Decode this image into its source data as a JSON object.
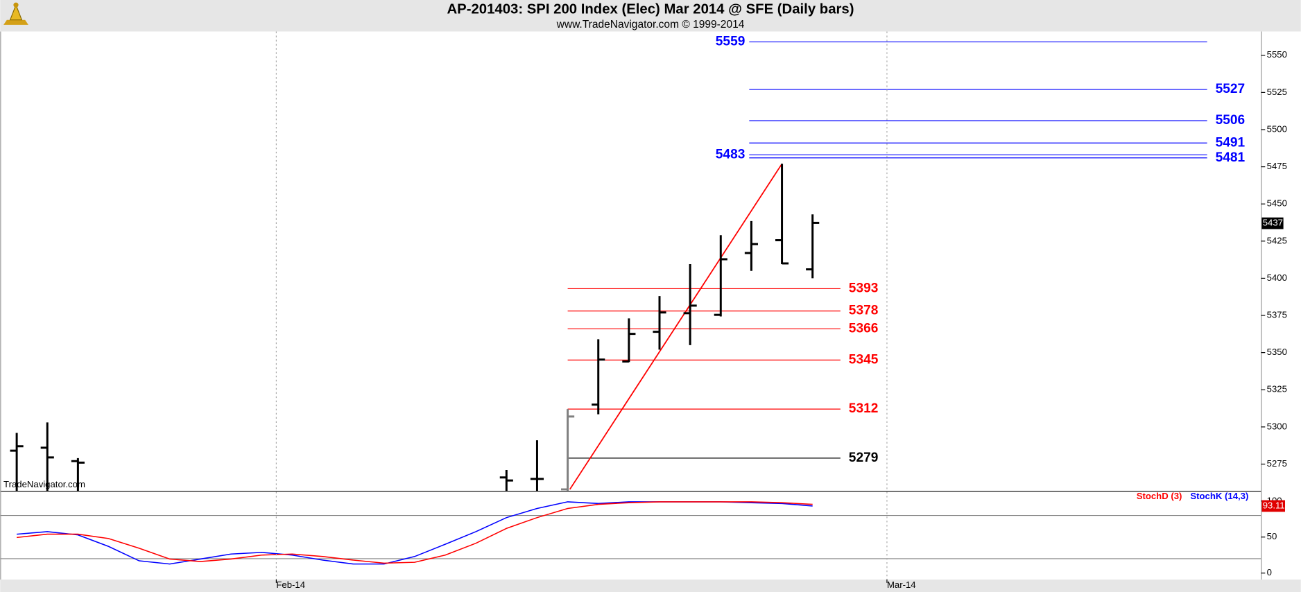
{
  "chart_data": [
    {
      "type": "ohlc",
      "title": "AP-201403:  SPI 200 Index (Elec) Mar 2014 @ SFE  (Daily bars)",
      "subtitle": "www.TradeNavigator.com © 1999-2014",
      "watermark": "TradeNavigator.com",
      "x": [
        0,
        1,
        2,
        16,
        17,
        18,
        19,
        20,
        21,
        22,
        23,
        24,
        25,
        26
      ],
      "open": [
        5284,
        5286,
        5277,
        5266,
        5265,
        5258,
        5315,
        5344,
        5364,
        5376.5,
        5375.4,
        5417,
        5425.6,
        5406
      ],
      "high": [
        5296,
        5303,
        5279,
        5271,
        5291,
        5312,
        5359,
        5373,
        5388,
        5409.5,
        5429,
        5438.5,
        5477,
        5443
      ],
      "low": [
        5250,
        5250,
        5250,
        5250,
        5250,
        5257,
        5308.5,
        5343.6,
        5352,
        5355,
        5374.3,
        5405,
        5409.5,
        5400
      ],
      "close": [
        5287,
        5279.5,
        5276,
        5264,
        5265,
        5307,
        5345.3,
        5362.6,
        5377,
        5381.6,
        5412.8,
        5423,
        5410,
        5437.3
      ],
      "colors": [
        "#000000",
        "#000000",
        "#000000",
        "#000000",
        "#000000",
        "#808080",
        "#000000",
        "#000000",
        "#000000",
        "#000000",
        "#000000",
        "#000000",
        "#000000",
        "#000000"
      ],
      "last_price": 5437,
      "xlim": [
        -0.54,
        40.65
      ],
      "ylim": [
        5257,
        5566
      ],
      "yticks": [
        5275,
        5300,
        5325,
        5350,
        5375,
        5400,
        5425,
        5450,
        5475,
        5500,
        5525,
        5550
      ],
      "levels": [
        {
          "value": 5559,
          "color": "#0000ff",
          "x": [
            23.93,
            38.89
          ],
          "label_side": "left"
        },
        {
          "value": 5527,
          "color": "#0000ff",
          "x": [
            23.93,
            38.89
          ],
          "label_side": "right"
        },
        {
          "value": 5506,
          "color": "#0000ff",
          "x": [
            23.93,
            38.89
          ],
          "label_side": "right"
        },
        {
          "value": 5491,
          "color": "#0000ff",
          "x": [
            23.93,
            38.89
          ],
          "label_side": "right"
        },
        {
          "value": 5483,
          "color": "#0000ff",
          "x": [
            23.93,
            38.89
          ],
          "label_side": "left"
        },
        {
          "value": 5481,
          "color": "#0000ff",
          "x": [
            23.93,
            38.89
          ],
          "label_side": "right"
        },
        {
          "value": 5393,
          "color": "#ff0000",
          "x": [
            18,
            26.91
          ],
          "label_side": "right"
        },
        {
          "value": 5378,
          "color": "#ff0000",
          "x": [
            18,
            26.91
          ],
          "label_side": "right"
        },
        {
          "value": 5366,
          "color": "#ff0000",
          "x": [
            18,
            26.91
          ],
          "label_side": "right"
        },
        {
          "value": 5345,
          "color": "#ff0000",
          "x": [
            18,
            26.91
          ],
          "label_side": "right"
        },
        {
          "value": 5312,
          "color": "#ff0000",
          "x": [
            18,
            26.91
          ],
          "label_side": "right"
        },
        {
          "value": 5279,
          "color": "#000000",
          "x": [
            18,
            26.91
          ],
          "label_side": "right"
        }
      ],
      "trendline": {
        "color": "#ff0000",
        "x": [
          18.07,
          25
        ],
        "values": [
          5258,
          5477
        ]
      }
    },
    {
      "type": "line",
      "x": [
        0,
        1,
        2,
        3,
        4,
        5,
        6,
        7,
        8,
        9,
        10,
        11,
        12,
        13,
        14,
        15,
        16,
        17,
        18,
        19,
        20,
        21,
        22,
        23,
        24,
        25,
        26
      ],
      "series": [
        {
          "name": "StochD (3)",
          "color": "#ff0000",
          "values": [
            49.4,
            54,
            54,
            48,
            34.5,
            19.5,
            16,
            19.5,
            25,
            26.4,
            23,
            18,
            13.8,
            15,
            25,
            41.4,
            62,
            77,
            89.7,
            95.4,
            97.7,
            98.9,
            98.9,
            98.9,
            98.9,
            97.7,
            95.4
          ]
        },
        {
          "name": "StochK (14,3)",
          "color": "#0000ff",
          "values": [
            54,
            57.5,
            53,
            37,
            17,
            12.6,
            19.5,
            26.4,
            28.7,
            25,
            18,
            12.6,
            12.6,
            23,
            40,
            57.5,
            77,
            89.7,
            98.9,
            96.6,
            98.9,
            98.9,
            98.9,
            98.9,
            97.7,
            96.6,
            93.11
          ]
        }
      ],
      "xlim": [
        -0.54,
        40.65
      ],
      "ylim": [
        -9,
        113
      ],
      "yticks": [
        0,
        50,
        100
      ],
      "xticks": [
        {
          "value": 8.48,
          "label": "Feb-14"
        },
        {
          "value": 28.43,
          "label": "Mar-14"
        }
      ],
      "levels": [
        {
          "value": 80,
          "color": "#808080"
        },
        {
          "value": 20,
          "color": "#808080"
        }
      ],
      "grid": true
    }
  ]
}
